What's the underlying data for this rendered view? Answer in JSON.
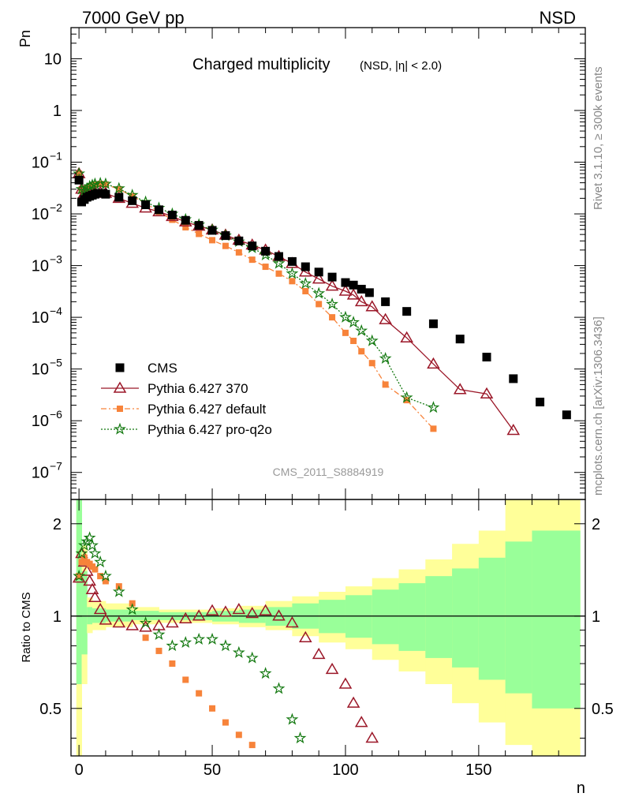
{
  "header": {
    "left": "7000 GeV pp",
    "right": "NSD"
  },
  "side_labels": {
    "rivet": "Rivet 3.1.10, ≥ 300k events",
    "mcplots": "mcplots.cern.ch [arXiv:1306.3436]"
  },
  "colors": {
    "cms": "#000000",
    "p370": "#9b1728",
    "pdefault": "#f7833a",
    "pq2o": "#12780f",
    "band_outer": "#ffff99",
    "band_inner": "#99ff99"
  },
  "chart_data": [
    {
      "type": "scatter",
      "title": "Charged multiplicity",
      "subtitle": "(NSD, |η| < 2.0)",
      "ylabel": "Pn",
      "xlabel": "n",
      "watermark": "CMS_2011_S8884919",
      "yscale": "log",
      "xlim": [
        -3,
        190
      ],
      "ylim": [
        3e-08,
        40
      ],
      "x_ticks": [
        0,
        50,
        100,
        150
      ],
      "y_ticks": [
        {
          "v": 1e-07,
          "l": "10"
        },
        {
          "v": 1e-06,
          "l": "10"
        },
        {
          "v": 1e-05,
          "l": "10"
        },
        {
          "v": 0.0001,
          "l": "10"
        },
        {
          "v": 0.001,
          "l": "10"
        },
        {
          "v": 0.01,
          "l": "10"
        },
        {
          "v": 0.1,
          "l": "10"
        },
        {
          "v": 1,
          "l": "1"
        },
        {
          "v": 10,
          "l": "10"
        }
      ],
      "y_tick_exponents": [
        "−7",
        "−6",
        "−5",
        "−4",
        "−3",
        "−2",
        "−1",
        "",
        ""
      ],
      "legend_position": "lower-left",
      "series": [
        {
          "name": "CMS",
          "marker": "square",
          "color": "#000000",
          "x": [
            0,
            1,
            2,
            3,
            4,
            5,
            6,
            7,
            8,
            9,
            10,
            15,
            20,
            25,
            30,
            35,
            40,
            45,
            50,
            55,
            60,
            65,
            70,
            75,
            80,
            85,
            90,
            95,
            100,
            103,
            106,
            109,
            115,
            123,
            133,
            143,
            153,
            163,
            173,
            183
          ],
          "y": [
            0.045,
            0.017,
            0.019,
            0.021,
            0.022,
            0.023,
            0.024,
            0.025,
            0.025,
            0.025,
            0.024,
            0.021,
            0.018,
            0.015,
            0.012,
            0.0095,
            0.0075,
            0.006,
            0.0048,
            0.0038,
            0.003,
            0.0024,
            0.0019,
            0.0015,
            0.0012,
            0.00095,
            0.00075,
            0.0006,
            0.00047,
            0.00042,
            0.00035,
            0.0003,
            0.0002,
            0.00013,
            7.5e-05,
            3.8e-05,
            1.7e-05,
            6.5e-06,
            2.3e-06,
            1.3e-06
          ]
        },
        {
          "name": "Pythia 6.427 370",
          "marker": "triangle-open",
          "color": "#9b1728",
          "x": [
            0,
            1,
            2,
            3,
            4,
            5,
            6,
            8,
            10,
            15,
            20,
            25,
            30,
            35,
            40,
            45,
            50,
            55,
            60,
            65,
            70,
            75,
            80,
            85,
            90,
            95,
            100,
            103,
            106,
            110,
            115,
            123,
            133,
            143,
            153,
            163
          ],
          "y": [
            0.06,
            0.03,
            0.025,
            0.025,
            0.025,
            0.026,
            0.026,
            0.026,
            0.025,
            0.02,
            0.016,
            0.013,
            0.011,
            0.0089,
            0.007,
            0.0058,
            0.0049,
            0.0039,
            0.0031,
            0.0025,
            0.002,
            0.0015,
            0.0011,
            0.00075,
            0.00055,
            0.0004,
            0.00032,
            0.00027,
            0.0002,
            0.00016,
            9e-05,
            4e-05,
            1.25e-05,
            4e-06,
            3.3e-06,
            6.5e-07
          ]
        },
        {
          "name": "Pythia 6.427 default",
          "marker": "square-small",
          "color": "#f7833a",
          "x": [
            0,
            1,
            2,
            3,
            4,
            5,
            6,
            8,
            10,
            15,
            20,
            25,
            30,
            35,
            40,
            45,
            50,
            55,
            60,
            65,
            70,
            75,
            80,
            85,
            90,
            95,
            100,
            103,
            106,
            110,
            115,
            123,
            133
          ],
          "y": [
            0.06,
            0.03,
            0.03,
            0.032,
            0.034,
            0.036,
            0.037,
            0.038,
            0.037,
            0.03,
            0.022,
            0.016,
            0.011,
            0.0077,
            0.0055,
            0.0041,
            0.0031,
            0.0024,
            0.0018,
            0.0013,
            0.00095,
            0.0007,
            0.0005,
            0.00032,
            0.00018,
            0.0001,
            5e-05,
            3.5e-05,
            2.2e-05,
            1.3e-05,
            5e-06,
            2.5e-06,
            7e-07
          ]
        },
        {
          "name": "Pythia 6.427 pro-q2o",
          "marker": "star",
          "color": "#12780f",
          "x": [
            0,
            1,
            2,
            3,
            4,
            5,
            6,
            8,
            10,
            15,
            20,
            25,
            30,
            35,
            40,
            45,
            50,
            55,
            60,
            65,
            70,
            75,
            80,
            85,
            90,
            95,
            100,
            103,
            106,
            110,
            115,
            123,
            133
          ],
          "y": [
            0.06,
            0.03,
            0.028,
            0.031,
            0.034,
            0.036,
            0.038,
            0.039,
            0.038,
            0.031,
            0.023,
            0.017,
            0.013,
            0.01,
            0.0078,
            0.0062,
            0.0049,
            0.0038,
            0.0029,
            0.0022,
            0.0016,
            0.0011,
            0.0007,
            0.00045,
            0.00029,
            0.00018,
            0.0001,
            8e-05,
            5.5e-05,
            3.5e-05,
            1.6e-05,
            2.8e-06,
            1.8e-06
          ]
        }
      ]
    },
    {
      "type": "scatter",
      "ylabel": "Ratio to CMS",
      "xlabel": "n",
      "yscale": "log",
      "xlim": [
        -3,
        190
      ],
      "ylim": [
        0.35,
        2.4
      ],
      "x_ticks": [
        0,
        50,
        100,
        150
      ],
      "y_ticks": [
        0.5,
        1,
        2
      ],
      "reference_line": 1,
      "bands": {
        "edges": [
          -1,
          1,
          3,
          5,
          10,
          20,
          30,
          40,
          50,
          60,
          70,
          80,
          90,
          100,
          110,
          120,
          130,
          140,
          150,
          160,
          170,
          188
        ],
        "outer": [
          [
            0.35,
            2.4
          ],
          [
            0.6,
            1.7
          ],
          [
            0.88,
            1.15
          ],
          [
            0.9,
            1.12
          ],
          [
            0.92,
            1.1
          ],
          [
            0.94,
            1.07
          ],
          [
            0.95,
            1.05
          ],
          [
            0.95,
            1.05
          ],
          [
            0.94,
            1.06
          ],
          [
            0.92,
            1.08
          ],
          [
            0.9,
            1.12
          ],
          [
            0.86,
            1.16
          ],
          [
            0.82,
            1.2
          ],
          [
            0.78,
            1.25
          ],
          [
            0.72,
            1.33
          ],
          [
            0.66,
            1.42
          ],
          [
            0.6,
            1.53
          ],
          [
            0.52,
            1.72
          ],
          [
            0.45,
            1.9
          ],
          [
            0.38,
            2.4
          ],
          [
            0.35,
            2.4
          ]
        ],
        "inner": [
          [
            0.6,
            2.4
          ],
          [
            0.75,
            1.4
          ],
          [
            0.94,
            1.07
          ],
          [
            0.95,
            1.06
          ],
          [
            0.96,
            1.05
          ],
          [
            0.97,
            1.04
          ],
          [
            0.97,
            1.03
          ],
          [
            0.97,
            1.03
          ],
          [
            0.96,
            1.04
          ],
          [
            0.95,
            1.05
          ],
          [
            0.93,
            1.07
          ],
          [
            0.91,
            1.1
          ],
          [
            0.88,
            1.13
          ],
          [
            0.85,
            1.17
          ],
          [
            0.81,
            1.22
          ],
          [
            0.77,
            1.28
          ],
          [
            0.73,
            1.35
          ],
          [
            0.68,
            1.43
          ],
          [
            0.62,
            1.55
          ],
          [
            0.56,
            1.75
          ],
          [
            0.5,
            1.9
          ]
        ]
      },
      "series": [
        {
          "name": "Pythia 6.427 370",
          "marker": "triangle-open",
          "color": "#9b1728",
          "x": [
            0,
            1,
            2,
            3,
            4,
            5,
            6,
            8,
            10,
            15,
            20,
            25,
            30,
            35,
            40,
            45,
            50,
            55,
            60,
            65,
            70,
            75,
            80,
            85,
            90,
            95,
            100,
            103,
            106,
            110
          ],
          "y": [
            1.33,
            1.6,
            1.5,
            1.4,
            1.3,
            1.22,
            1.15,
            1.05,
            0.97,
            0.95,
            0.93,
            0.92,
            0.93,
            0.95,
            0.98,
            1.0,
            1.04,
            1.03,
            1.05,
            1.02,
            1.04,
            1.0,
            0.95,
            0.85,
            0.75,
            0.67,
            0.6,
            0.52,
            0.45,
            0.4
          ]
        },
        {
          "name": "Pythia 6.427 default",
          "marker": "square-small",
          "color": "#f7833a",
          "x": [
            0,
            1,
            2,
            3,
            4,
            5,
            6,
            8,
            10,
            15,
            20,
            25,
            30,
            35,
            40,
            45,
            50,
            55,
            60,
            65
          ],
          "y": [
            1.35,
            1.5,
            1.55,
            1.5,
            1.48,
            1.45,
            1.42,
            1.35,
            1.3,
            1.25,
            1.1,
            0.85,
            0.77,
            0.7,
            0.62,
            0.56,
            0.5,
            0.45,
            0.41,
            0.38
          ]
        },
        {
          "name": "Pythia 6.427 pro-q2o",
          "marker": "star",
          "color": "#12780f",
          "x": [
            0,
            1,
            2,
            3,
            4,
            5,
            6,
            8,
            10,
            15,
            20,
            25,
            30,
            35,
            40,
            45,
            50,
            55,
            60,
            65,
            70,
            75,
            80,
            83
          ],
          "y": [
            1.35,
            1.6,
            1.7,
            1.75,
            1.8,
            1.7,
            1.6,
            1.5,
            1.35,
            1.2,
            1.05,
            0.95,
            0.87,
            0.8,
            0.82,
            0.84,
            0.84,
            0.8,
            0.76,
            0.73,
            0.65,
            0.58,
            0.46,
            0.4
          ]
        }
      ]
    }
  ]
}
